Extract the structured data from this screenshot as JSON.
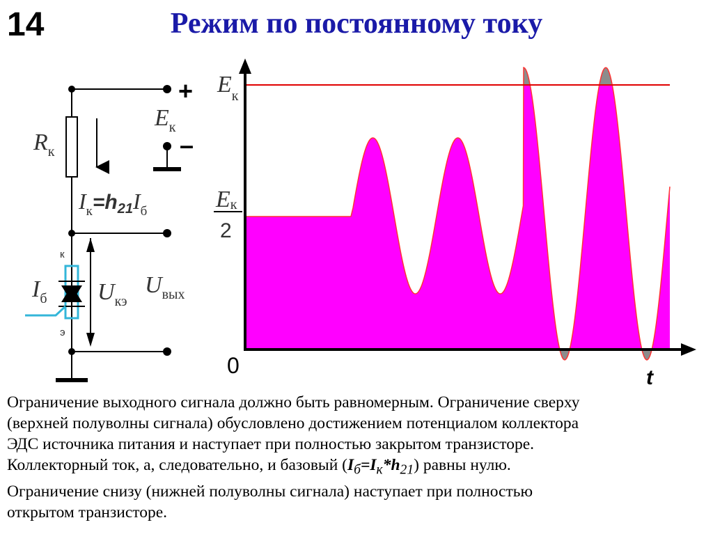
{
  "slide_number": "14",
  "title": "Режим по постоянному току",
  "circuit": {
    "plus": "+",
    "minus": "–",
    "e_main": "E",
    "e_sub": "к",
    "r_main": "R",
    "r_sub": "к",
    "i_main": "I",
    "i_sub": "к",
    "i_mid": "=h",
    "i_mid_sub": "21",
    "ib_main": "I",
    "ib_sub": "б",
    "collector": "к",
    "emitter": "э",
    "base_main": "I",
    "base_sub": "б",
    "uke_main": "U",
    "uke_sub": "кэ",
    "uout_main": "U",
    "uout_sub": "вых"
  },
  "plot": {
    "ek_main": "E",
    "ek_sub": "к",
    "half_main": "E",
    "half_sub": "к",
    "half_den": "2",
    "zero": "0",
    "t": "t",
    "colors": {
      "fill": "#ff00ff",
      "clip": "#8c8c8c",
      "limit": "#e00000",
      "curve": "#ff3333",
      "axis": "#000000"
    },
    "regions": [
      "постоянный уровень Eк/2",
      "синусоида без ограничения",
      "синусоида с ограничением сверху и снизу"
    ]
  },
  "caption": {
    "line1": "Ограничение выходного сигнала должно быть равномерным. Ограничение сверху",
    "line2": "(верхней полуволны сигнала) обусловлено достижением потенциалом коллектора",
    "line3": "ЭДС источника питания и наступает при полностью закрытом транзисторе.",
    "line4_pre": "Коллекторный ток, а, следовательно, и базовый (",
    "f1": "I",
    "f1_sub": "б",
    "f2": "=I",
    "f2_sub": "к",
    "f3": "*h",
    "f3_sub": "21",
    "line4_post": ") равны нулю.",
    "line5": "Ограничение снизу (нижней полуволны сигнала) наступает при полностью",
    "line6": "открытом транзисторе."
  }
}
